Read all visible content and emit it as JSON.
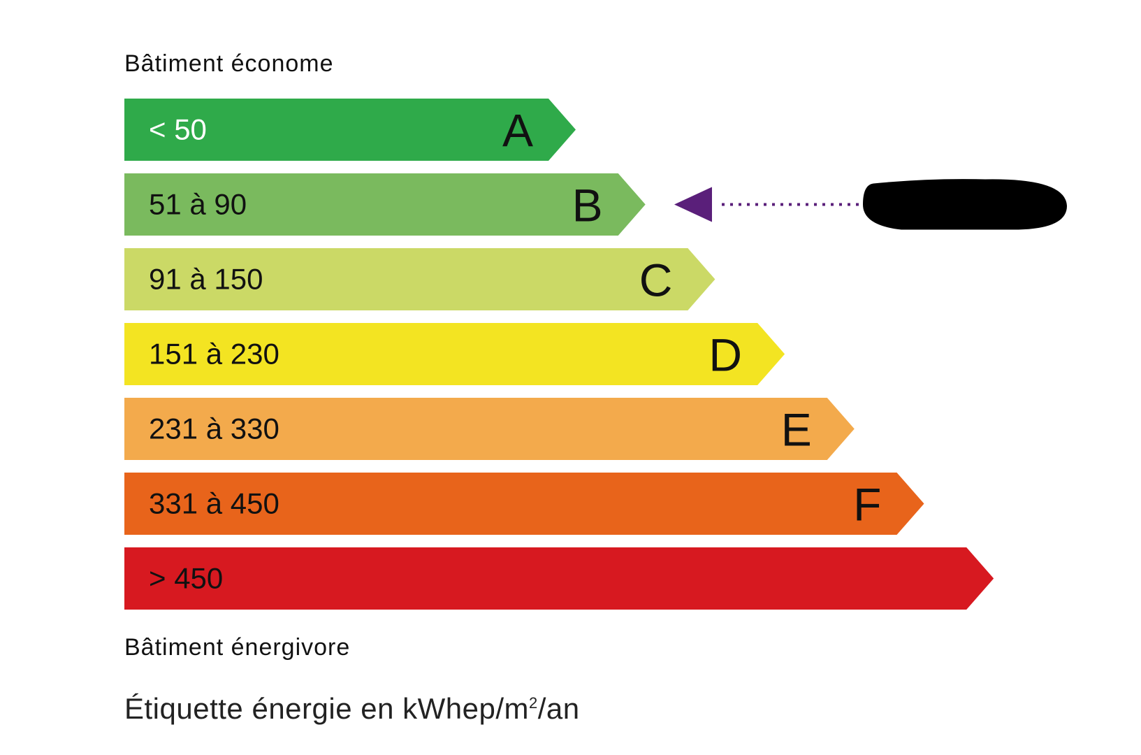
{
  "chart_data": {
    "type": "energy-label",
    "top_label": "Bâtiment économe",
    "bottom_label": "Bâtiment énergivore",
    "footer": {
      "text": "Étiquette énergie en kWhep/m",
      "superscript": "2",
      "suffix": "/an"
    },
    "bands": [
      {
        "range": "< 50",
        "letter": "A",
        "color": "#2faa4a",
        "text_color": "#ffffff"
      },
      {
        "range": "51 à 90",
        "letter": "B",
        "color": "#7aba5e",
        "text_color": "#111111"
      },
      {
        "range": "91 à 150",
        "letter": "C",
        "color": "#cbd966",
        "text_color": "#111111"
      },
      {
        "range": "151 à 230",
        "letter": "D",
        "color": "#f3e422",
        "text_color": "#111111"
      },
      {
        "range": "231 à 330",
        "letter": "E",
        "color": "#f3aa4c",
        "text_color": "#111111"
      },
      {
        "range": "331 à 450",
        "letter": "F",
        "color": "#e8641b",
        "text_color": "#111111"
      },
      {
        "range": "> 450",
        "letter": "",
        "color": "#d71920",
        "text_color": "#111111"
      }
    ],
    "indicator": {
      "band": "B",
      "color": "#5a1f7a",
      "value_redacted": true
    }
  }
}
